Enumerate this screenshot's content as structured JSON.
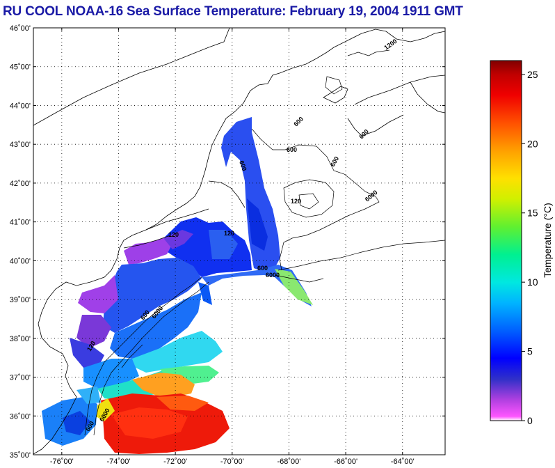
{
  "header": {
    "title": "RU COOL  NOAA-16  Sea Surface Temperature:  February 19, 2004 1911 GMT"
  },
  "map": {
    "lon_range": [
      -77,
      -62.5
    ],
    "lat_range": [
      35,
      46
    ],
    "lat_ticks": [
      {
        "value": 46,
        "label": "46˚00'"
      },
      {
        "value": 45,
        "label": "45˚00'"
      },
      {
        "value": 44,
        "label": "44˚00'"
      },
      {
        "value": 43,
        "label": "43˚00'"
      },
      {
        "value": 42,
        "label": "42˚00'"
      },
      {
        "value": 41,
        "label": "41˚00'"
      },
      {
        "value": 40,
        "label": "40˚00'"
      },
      {
        "value": 39,
        "label": "39˚00'"
      },
      {
        "value": 38,
        "label": "38˚00'"
      },
      {
        "value": 37,
        "label": "37˚00'"
      },
      {
        "value": 36,
        "label": "36˚00'"
      },
      {
        "value": 35,
        "label": "35˚00'"
      }
    ],
    "lon_ticks": [
      {
        "value": -76,
        "label": "-76˚00'"
      },
      {
        "value": -74,
        "label": "-74˚00'"
      },
      {
        "value": -72,
        "label": "-72˚00'"
      },
      {
        "value": -70,
        "label": "-70˚00'"
      },
      {
        "value": -68,
        "label": "-68˚00'"
      },
      {
        "value": -66,
        "label": "-66˚00'"
      },
      {
        "value": -64,
        "label": "-64˚00'"
      }
    ],
    "contour_labels": [
      "1200",
      "600",
      "600",
      "600",
      "600",
      "6000",
      "120",
      "6000",
      "600",
      "120",
      "120",
      "600",
      "6000",
      "600",
      "600",
      "120",
      "6000"
    ],
    "colors": {
      "land_line": "#000000",
      "grid_dot": "#000000",
      "title": "#1a1aa6"
    }
  },
  "colorbar": {
    "label": "Temperature (°C)",
    "min": 0,
    "max": 26,
    "ticks": [
      {
        "value": 0,
        "label": "0"
      },
      {
        "value": 5,
        "label": "5"
      },
      {
        "value": 10,
        "label": "10"
      },
      {
        "value": 15,
        "label": "15"
      },
      {
        "value": 20,
        "label": "20"
      },
      {
        "value": 25,
        "label": "25"
      }
    ],
    "stops": [
      {
        "value": 0,
        "color": "#ffffff"
      },
      {
        "value": 0.3,
        "color": "#ff55ff"
      },
      {
        "value": 1.5,
        "color": "#b040e0"
      },
      {
        "value": 3,
        "color": "#3030c8"
      },
      {
        "value": 4.5,
        "color": "#0000ff"
      },
      {
        "value": 6.5,
        "color": "#0060ff"
      },
      {
        "value": 8.5,
        "color": "#00b4ff"
      },
      {
        "value": 10,
        "color": "#00e8e0"
      },
      {
        "value": 12,
        "color": "#00f090"
      },
      {
        "value": 14,
        "color": "#60f030"
      },
      {
        "value": 16,
        "color": "#d0f000"
      },
      {
        "value": 17.5,
        "color": "#ffe000"
      },
      {
        "value": 19.5,
        "color": "#ffa000"
      },
      {
        "value": 21.5,
        "color": "#ff5000"
      },
      {
        "value": 23.5,
        "color": "#f00000"
      },
      {
        "value": 25,
        "color": "#c00000"
      },
      {
        "value": 26,
        "color": "#800000"
      }
    ]
  }
}
